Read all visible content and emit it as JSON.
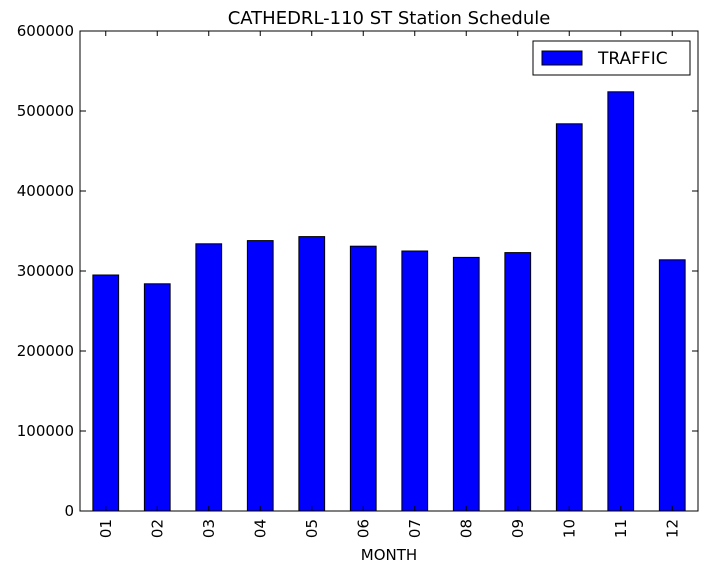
{
  "chart_data": {
    "type": "bar",
    "title": "CATHEDRL-110 ST Station Schedule",
    "xlabel": "MONTH",
    "ylabel": "",
    "categories": [
      "01",
      "02",
      "03",
      "04",
      "05",
      "06",
      "07",
      "08",
      "09",
      "10",
      "11",
      "12"
    ],
    "series": [
      {
        "name": "TRAFFIC",
        "color": "#0000ff",
        "values": [
          295000,
          284000,
          334000,
          338000,
          343000,
          331000,
          325000,
          317000,
          323000,
          484000,
          524000,
          314000
        ]
      }
    ],
    "ylim": [
      0,
      600000
    ],
    "yticks": [
      "0",
      "100000",
      "200000",
      "300000",
      "400000",
      "500000",
      "600000"
    ],
    "grid": false,
    "legend_position": "top-right"
  }
}
